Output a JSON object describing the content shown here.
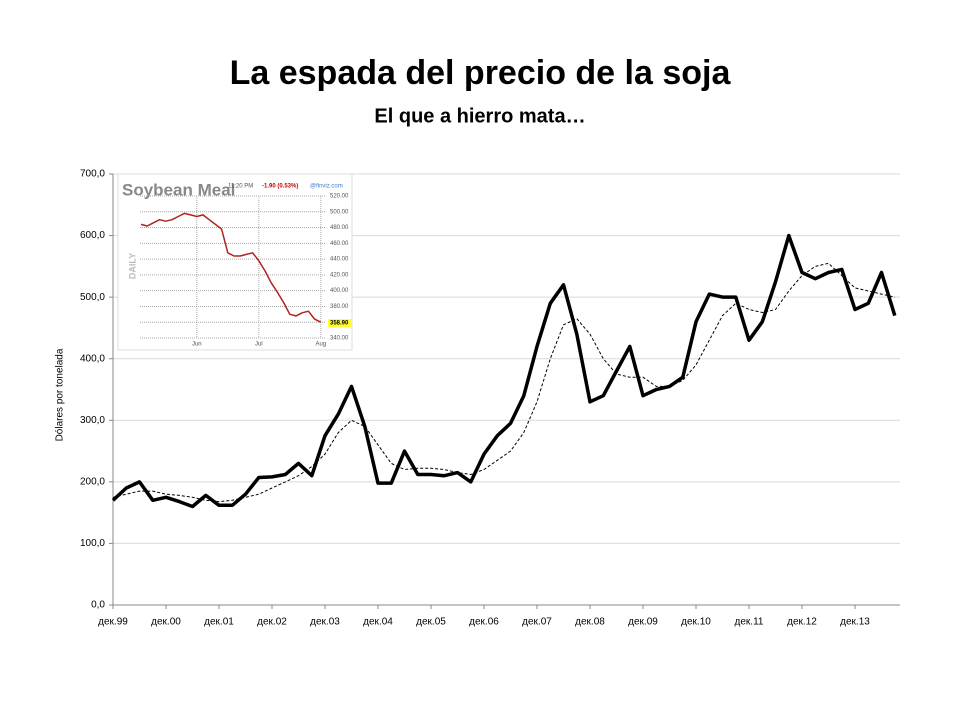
{
  "chart_data": [
    {
      "type": "line",
      "title": "La espada del precio de la soja",
      "subtitle": "El que a hierro mata…",
      "y_label": "Dólares por tonelada",
      "categories": [
        "дек.99",
        null,
        null,
        null,
        "дек.00",
        null,
        null,
        null,
        "дек.01",
        null,
        null,
        null,
        "дек.02",
        null,
        null,
        null,
        "дек.03",
        null,
        null,
        null,
        "дек.04",
        null,
        null,
        null,
        "дек.05",
        null,
        null,
        null,
        "дек.06",
        null,
        null,
        null,
        "дек.07",
        null,
        null,
        null,
        "дек.08",
        null,
        null,
        null,
        "дек.09",
        null,
        null,
        null,
        "дек.10",
        null,
        null,
        null,
        "дек.11",
        null,
        null,
        null,
        "дек.12",
        null,
        null,
        null,
        "дек.13",
        null,
        null,
        null
      ],
      "series": [
        {
          "color": "#000000",
          "dash": false,
          "width": 3.5,
          "values": [
            170,
            190,
            200,
            170,
            175,
            168,
            160,
            178,
            162,
            162,
            180,
            207,
            208,
            212,
            230,
            210,
            275,
            310,
            355,
            290,
            198,
            198,
            250,
            212,
            212,
            210,
            215,
            200,
            245,
            275,
            295,
            340,
            420,
            490,
            520,
            440,
            330,
            340,
            380,
            420,
            340,
            350,
            355,
            370,
            460,
            505,
            500,
            500,
            430,
            460,
            525,
            600,
            540,
            530,
            540,
            545,
            480,
            490,
            540,
            470
          ]
        },
        {
          "color": "#000000",
          "dash": true,
          "width": 1,
          "values": [
            175,
            180,
            185,
            185,
            180,
            178,
            175,
            170,
            168,
            170,
            175,
            180,
            190,
            200,
            210,
            225,
            245,
            280,
            300,
            290,
            260,
            230,
            220,
            222,
            222,
            220,
            215,
            212,
            220,
            235,
            250,
            280,
            330,
            400,
            455,
            465,
            440,
            400,
            375,
            370,
            370,
            355,
            355,
            365,
            390,
            430,
            470,
            490,
            480,
            475,
            480,
            510,
            535,
            550,
            555,
            535,
            515,
            510,
            505,
            500
          ]
        }
      ],
      "ylim": [
        0,
        700
      ],
      "yticks": [
        {
          "value": 0,
          "label": "0,0"
        },
        {
          "value": 100,
          "label": "100,0"
        },
        {
          "value": 200,
          "label": "200,0"
        },
        {
          "value": 300,
          "label": "300,0"
        },
        {
          "value": 400,
          "label": "400,0"
        },
        {
          "value": 500,
          "label": "500,0"
        },
        {
          "value": 600,
          "label": "600,0"
        },
        {
          "value": 700,
          "label": "700,0"
        }
      ],
      "grid": true
    },
    {
      "type": "line",
      "title": "Soybean Meal",
      "time": "11:20 PM",
      "change": "-1.90 (0.53%)",
      "source": "@finviz.com",
      "period": "DAILY",
      "categories": [
        null,
        null,
        null,
        null,
        null,
        null,
        null,
        null,
        null,
        "Jun",
        null,
        null,
        null,
        null,
        null,
        null,
        null,
        null,
        null,
        "Jul",
        null,
        null,
        null,
        null,
        null,
        null,
        null,
        null,
        null,
        "Aug"
      ],
      "series": [
        {
          "color": "#b22222",
          "dash": false,
          "width": 1.5,
          "values": [
            484,
            482,
            486,
            490,
            488,
            490,
            494,
            498,
            496,
            494,
            496,
            490,
            484,
            478,
            448,
            444,
            444,
            446,
            448,
            438,
            425,
            410,
            398,
            385,
            370,
            368,
            372,
            374,
            364,
            360
          ]
        }
      ],
      "last_price": {
        "value": 358.9,
        "label": "358.90"
      },
      "ylim": [
        340,
        520
      ],
      "yticks": [
        {
          "value": 340,
          "label": "340.00"
        },
        {
          "value": 360,
          "label": "360.00"
        },
        {
          "value": 380,
          "label": "380.00"
        },
        {
          "value": 400,
          "label": "400.00"
        },
        {
          "value": 420,
          "label": "420.00"
        },
        {
          "value": 440,
          "label": "440.00"
        },
        {
          "value": 460,
          "label": "460.00"
        },
        {
          "value": 480,
          "label": "480.00"
        },
        {
          "value": 500,
          "label": "500.00"
        },
        {
          "value": 520,
          "label": "520.00"
        }
      ],
      "grid": true
    }
  ]
}
